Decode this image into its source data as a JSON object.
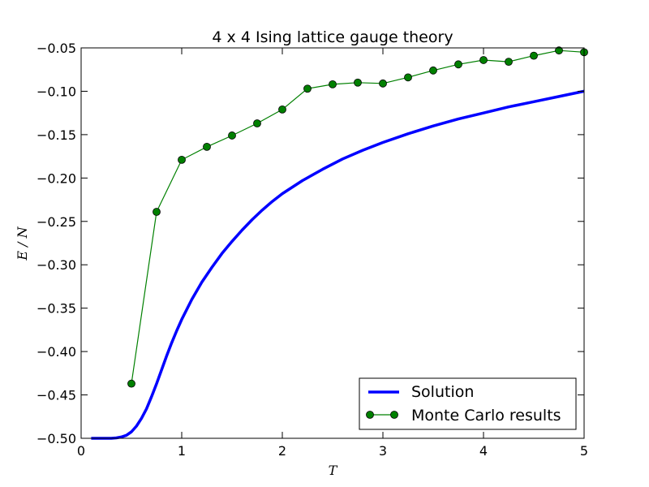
{
  "chart_data": {
    "type": "line",
    "title": "4 x 4 Ising lattice gauge theory",
    "xlabel": "T",
    "ylabel": "E / N",
    "xlim": [
      0,
      5
    ],
    "ylim": [
      -0.5,
      -0.05
    ],
    "x_ticks": [
      "0",
      "1",
      "2",
      "3",
      "4",
      "5"
    ],
    "y_ticks": [
      "−0.05",
      "−0.10",
      "−0.15",
      "−0.20",
      "−0.25",
      "−0.30",
      "−0.35",
      "−0.40",
      "−0.45",
      "−0.50"
    ],
    "grid": false,
    "legend_position": "lower-right",
    "series": [
      {
        "name": "Solution",
        "style": "line",
        "color": "#0000ff",
        "x": [
          0.1,
          0.2,
          0.3,
          0.35,
          0.4,
          0.45,
          0.5,
          0.55,
          0.6,
          0.65,
          0.7,
          0.75,
          0.8,
          0.85,
          0.9,
          0.95,
          1.0,
          1.1,
          1.2,
          1.3,
          1.4,
          1.5,
          1.6,
          1.7,
          1.8,
          1.9,
          2.0,
          2.2,
          2.4,
          2.6,
          2.8,
          3.0,
          3.25,
          3.5,
          3.75,
          4.0,
          4.25,
          4.5,
          4.75,
          5.0
        ],
        "y": [
          -0.5,
          -0.5,
          -0.5,
          -0.4995,
          -0.4985,
          -0.4965,
          -0.4925,
          -0.486,
          -0.477,
          -0.466,
          -0.452,
          -0.437,
          -0.421,
          -0.405,
          -0.39,
          -0.376,
          -0.363,
          -0.34,
          -0.32,
          -0.303,
          -0.287,
          -0.273,
          -0.26,
          -0.248,
          -0.237,
          -0.227,
          -0.218,
          -0.203,
          -0.19,
          -0.178,
          -0.168,
          -0.159,
          -0.149,
          -0.14,
          -0.132,
          -0.125,
          -0.118,
          -0.112,
          -0.106,
          -0.1
        ]
      },
      {
        "name": "Monte Carlo results",
        "style": "line-marker",
        "color": "#008000",
        "x": [
          0.5,
          0.75,
          1.0,
          1.25,
          1.5,
          1.75,
          2.0,
          2.25,
          2.5,
          2.75,
          3.0,
          3.25,
          3.5,
          3.75,
          4.0,
          4.25,
          4.5,
          4.75,
          5.0
        ],
        "y": [
          -0.437,
          -0.239,
          -0.179,
          -0.164,
          -0.151,
          -0.137,
          -0.121,
          -0.097,
          -0.092,
          -0.09,
          -0.091,
          -0.084,
          -0.076,
          -0.069,
          -0.064,
          -0.066,
          -0.059,
          -0.053,
          -0.055
        ]
      }
    ]
  }
}
